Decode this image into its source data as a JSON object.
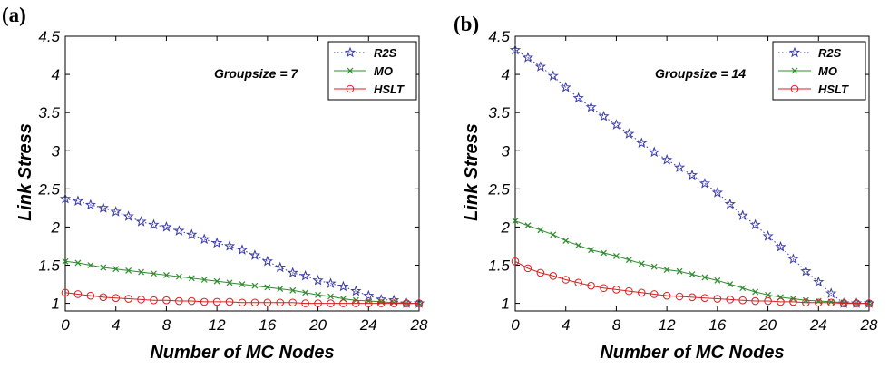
{
  "chart_data": [
    {
      "type": "line",
      "panel_label": "(a)",
      "annotation": "Groupsize = 7",
      "xlabel": "Number of MC Nodes",
      "ylabel": "Link Stress",
      "xlim": [
        0,
        28
      ],
      "ylim": [
        0.9,
        4.5
      ],
      "xticks": [
        "0",
        "4",
        "8",
        "12",
        "16",
        "20",
        "24",
        "28"
      ],
      "yticks": [
        "1",
        "1.5",
        "2",
        "2.5",
        "3",
        "3.5",
        "4",
        "4.5"
      ],
      "legend_position": "top-right",
      "x": [
        0,
        1,
        2,
        3,
        4,
        5,
        6,
        7,
        8,
        9,
        10,
        11,
        12,
        13,
        14,
        15,
        16,
        17,
        18,
        19,
        20,
        21,
        22,
        23,
        24,
        25,
        26,
        27,
        28
      ],
      "series": [
        {
          "name": "R2S",
          "color": "#3a3aa8",
          "marker": "star",
          "line": "dotted",
          "values": [
            2.37,
            2.34,
            2.29,
            2.25,
            2.2,
            2.14,
            2.07,
            2.03,
            2.0,
            1.95,
            1.9,
            1.84,
            1.79,
            1.75,
            1.7,
            1.63,
            1.55,
            1.47,
            1.4,
            1.36,
            1.3,
            1.26,
            1.22,
            1.16,
            1.1,
            1.05,
            1.04,
            1.0,
            1.0
          ]
        },
        {
          "name": "MO",
          "color": "#2e8b2e",
          "marker": "x",
          "line": "solid",
          "values": [
            1.55,
            1.53,
            1.5,
            1.47,
            1.45,
            1.43,
            1.41,
            1.39,
            1.37,
            1.35,
            1.33,
            1.31,
            1.29,
            1.27,
            1.25,
            1.23,
            1.21,
            1.19,
            1.17,
            1.14,
            1.11,
            1.09,
            1.06,
            1.04,
            1.03,
            1.02,
            1.01,
            1.0,
            1.0
          ]
        },
        {
          "name": "HSLT",
          "color": "#d62020",
          "marker": "circle",
          "line": "solid",
          "values": [
            1.14,
            1.12,
            1.1,
            1.08,
            1.07,
            1.06,
            1.05,
            1.04,
            1.04,
            1.03,
            1.03,
            1.02,
            1.02,
            1.02,
            1.01,
            1.01,
            1.01,
            1.01,
            1.01,
            1.0,
            1.0,
            1.0,
            1.0,
            1.0,
            1.0,
            1.0,
            1.0,
            1.0,
            1.0
          ]
        }
      ]
    },
    {
      "type": "line",
      "panel_label": "(b)",
      "annotation": "Groupsize = 14",
      "xlabel": "Number of MC Nodes",
      "ylabel": "Link Stress",
      "xlim": [
        0,
        28
      ],
      "ylim": [
        0.9,
        4.5
      ],
      "xticks": [
        "0",
        "4",
        "8",
        "12",
        "16",
        "20",
        "24",
        "28"
      ],
      "yticks": [
        "1",
        "1.5",
        "2",
        "2.5",
        "3",
        "3.5",
        "4",
        "4.5"
      ],
      "legend_position": "top-right",
      "x": [
        0,
        1,
        2,
        3,
        4,
        5,
        6,
        7,
        8,
        9,
        10,
        11,
        12,
        13,
        14,
        15,
        16,
        17,
        18,
        19,
        20,
        21,
        22,
        23,
        24,
        25,
        26,
        27,
        28
      ],
      "series": [
        {
          "name": "R2S",
          "color": "#3a3aa8",
          "marker": "star",
          "line": "dotted",
          "values": [
            4.32,
            4.22,
            4.1,
            3.98,
            3.83,
            3.69,
            3.57,
            3.45,
            3.34,
            3.22,
            3.1,
            2.98,
            2.88,
            2.78,
            2.68,
            2.57,
            2.45,
            2.3,
            2.15,
            2.03,
            1.88,
            1.74,
            1.58,
            1.42,
            1.28,
            1.13,
            1.0,
            1.0,
            1.0
          ]
        },
        {
          "name": "MO",
          "color": "#2e8b2e",
          "marker": "x",
          "line": "solid",
          "values": [
            2.08,
            2.02,
            1.96,
            1.9,
            1.82,
            1.76,
            1.7,
            1.66,
            1.62,
            1.57,
            1.52,
            1.48,
            1.44,
            1.42,
            1.38,
            1.34,
            1.3,
            1.25,
            1.2,
            1.15,
            1.11,
            1.08,
            1.06,
            1.04,
            1.03,
            1.02,
            1.01,
            1.0,
            1.0
          ]
        },
        {
          "name": "HSLT",
          "color": "#d62020",
          "marker": "circle",
          "line": "solid",
          "values": [
            1.55,
            1.46,
            1.4,
            1.36,
            1.31,
            1.27,
            1.23,
            1.2,
            1.18,
            1.16,
            1.14,
            1.12,
            1.1,
            1.09,
            1.08,
            1.07,
            1.06,
            1.05,
            1.04,
            1.03,
            1.03,
            1.02,
            1.02,
            1.01,
            1.01,
            1.01,
            1.0,
            1.0,
            1.0
          ]
        }
      ]
    }
  ]
}
